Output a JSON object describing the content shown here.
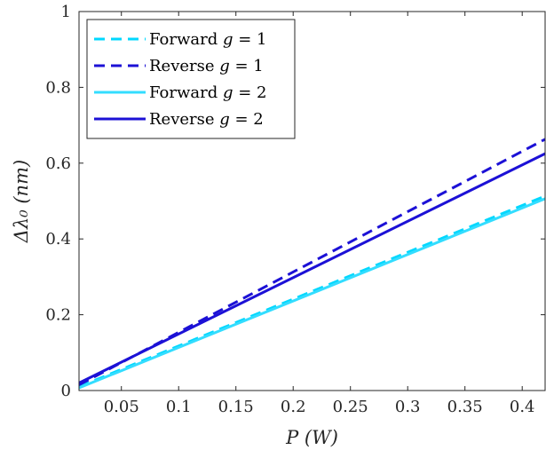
{
  "chart_data": {
    "type": "line",
    "xlabel": "P (W)",
    "ylabel": "Δλ₀ (nm)",
    "xlim": [
      0.013,
      0.42
    ],
    "ylim": [
      0,
      1
    ],
    "x_ticks": [
      0.05,
      0.1,
      0.15,
      0.2,
      0.25,
      0.3,
      0.35,
      0.4
    ],
    "x_tick_labels": [
      "0.05",
      "0.1",
      "0.15",
      "0.2",
      "0.25",
      "0.3",
      "0.35",
      "0.4"
    ],
    "y_ticks": [
      0,
      0.2,
      0.4,
      0.6,
      0.8,
      1
    ],
    "y_tick_labels": [
      "0",
      "0.2",
      "0.4",
      "0.6",
      "0.8",
      "1"
    ],
    "grid": false,
    "legend_position": "top-left",
    "series": [
      {
        "name": "Forward g = 1",
        "label_main": "Forward ",
        "label_var": "g",
        "label_eq": " = 1",
        "color": "#00D8FF",
        "style": "dashed",
        "x": [
          0.013,
          0.42
        ],
        "y": [
          0.01,
          0.513
        ]
      },
      {
        "name": "Reverse g = 1",
        "label_main": "Reverse ",
        "label_var": "g",
        "label_eq": " = 1",
        "color": "#1C11D6",
        "style": "dashed",
        "x": [
          0.013,
          0.42
        ],
        "y": [
          0.015,
          0.663
        ]
      },
      {
        "name": "Forward g = 2",
        "label_main": "Forward ",
        "label_var": "g",
        "label_eq": " = 2",
        "color": "#33DDFF",
        "style": "solid",
        "x": [
          0.013,
          0.42
        ],
        "y": [
          0.007,
          0.506
        ]
      },
      {
        "name": "Reverse g = 2",
        "label_main": "Reverse ",
        "label_var": "g",
        "label_eq": " = 2",
        "color": "#1C11D6",
        "style": "solid",
        "x": [
          0.013,
          0.42
        ],
        "y": [
          0.02,
          0.625
        ]
      }
    ]
  }
}
